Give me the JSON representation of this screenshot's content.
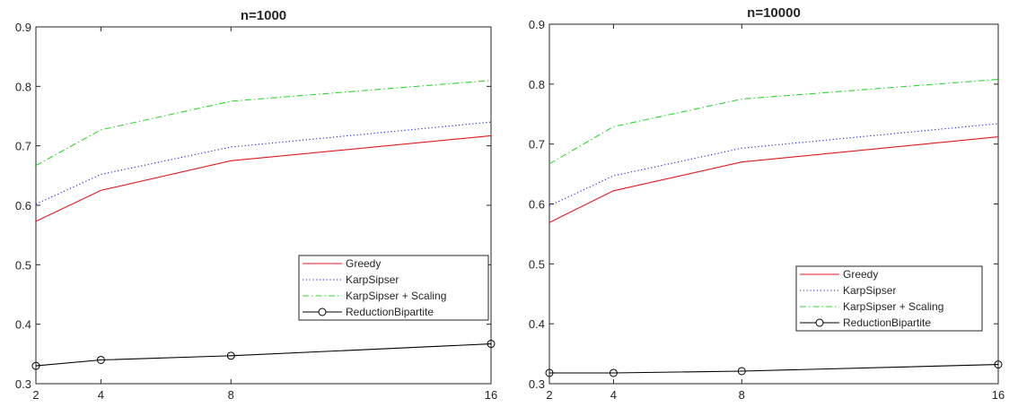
{
  "chart_data": [
    {
      "type": "line",
      "title": "n=1000",
      "xlabel": "",
      "ylabel": "",
      "x": [
        2,
        4,
        8,
        16
      ],
      "xticks": [
        2,
        4,
        8,
        16
      ],
      "xtick_labels": [
        "2",
        "4",
        "8",
        "16"
      ],
      "xlim": [
        2,
        16
      ],
      "ylim": [
        0.3,
        0.9
      ],
      "yticks": [
        0.3,
        0.4,
        0.5,
        0.6,
        0.7,
        0.8,
        0.9
      ],
      "ytick_labels": [
        "0.3",
        "0.4",
        "0.5",
        "0.6",
        "0.7",
        "0.8",
        "0.9"
      ],
      "grid": false,
      "legend_position": "bottom-right",
      "series": [
        {
          "name": "Greedy",
          "values": [
            0.573,
            0.625,
            0.675,
            0.717
          ],
          "color": "#e41a1c",
          "style": "solid",
          "marker": "none"
        },
        {
          "name": "KarpSipser",
          "values": [
            0.602,
            0.652,
            0.698,
            0.74
          ],
          "color": "#1f1fd8",
          "style": "dotted",
          "marker": "none"
        },
        {
          "name": "KarpSipser + Scaling",
          "values": [
            0.667,
            0.727,
            0.775,
            0.81
          ],
          "color": "#2bd92b",
          "style": "dashdot",
          "marker": "none"
        },
        {
          "name": "ReductionBipartite",
          "values": [
            0.33,
            0.34,
            0.347,
            0.367
          ],
          "color": "#000000",
          "style": "solid",
          "marker": "circle"
        }
      ]
    },
    {
      "type": "line",
      "title": "n=10000",
      "xlabel": "",
      "ylabel": "",
      "x": [
        2,
        4,
        8,
        16
      ],
      "xticks": [
        2,
        4,
        8,
        16
      ],
      "xtick_labels": [
        "2",
        "4",
        "8",
        "16"
      ],
      "xlim": [
        2,
        16
      ],
      "ylim": [
        0.3,
        0.9
      ],
      "yticks": [
        0.3,
        0.4,
        0.5,
        0.6,
        0.7,
        0.8,
        0.9
      ],
      "ytick_labels": [
        "0.3",
        "0.4",
        "0.5",
        "0.6",
        "0.7",
        "0.8",
        "0.9"
      ],
      "grid": false,
      "legend_position": "bottom-right",
      "series": [
        {
          "name": "Greedy",
          "values": [
            0.569,
            0.622,
            0.67,
            0.712
          ],
          "color": "#e41a1c",
          "style": "solid",
          "marker": "none"
        },
        {
          "name": "KarpSipser",
          "values": [
            0.597,
            0.647,
            0.693,
            0.734
          ],
          "color": "#1f1fd8",
          "style": "dotted",
          "marker": "none"
        },
        {
          "name": "KarpSipser + Scaling",
          "values": [
            0.667,
            0.729,
            0.775,
            0.808
          ],
          "color": "#2bd92b",
          "style": "dashdot",
          "marker": "none"
        },
        {
          "name": "ReductionBipartite",
          "values": [
            0.318,
            0.318,
            0.321,
            0.332
          ],
          "color": "#000000",
          "style": "solid",
          "marker": "circle"
        }
      ]
    }
  ]
}
